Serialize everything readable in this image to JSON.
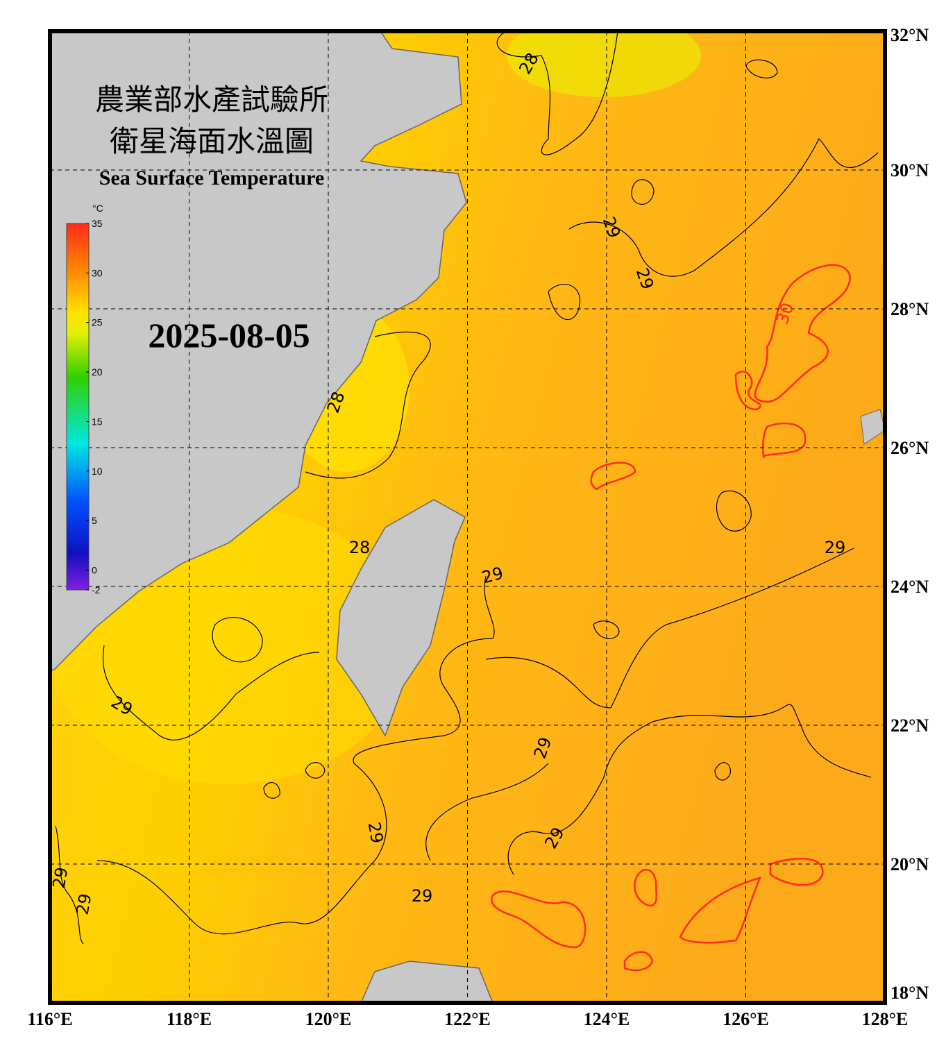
{
  "chart_data": {
    "type": "map",
    "title": "農業部水產試驗所",
    "subtitle": "衛星海面水溫圖",
    "caption": "Sea Surface Temperature",
    "date": "2025-08-05",
    "colorbar": {
      "unit": "°C",
      "lim": [
        -2,
        35
      ],
      "ticks": [
        35,
        30,
        25,
        20,
        15,
        10,
        5,
        0,
        -2
      ]
    },
    "xlim": [
      116,
      128
    ],
    "ylim": [
      18,
      32
    ],
    "xticks": [
      {
        "value": 116,
        "label": "116°E"
      },
      {
        "value": 118,
        "label": "118°E"
      },
      {
        "value": 120,
        "label": "120°E"
      },
      {
        "value": 122,
        "label": "122°E"
      },
      {
        "value": 124,
        "label": "124°E"
      },
      {
        "value": 126,
        "label": "126°E"
      },
      {
        "value": 128,
        "label": "128°E"
      }
    ],
    "yticks": [
      {
        "value": 18,
        "label": "18°N"
      },
      {
        "value": 20,
        "label": "20°N"
      },
      {
        "value": 22,
        "label": "22°N"
      },
      {
        "value": 24,
        "label": "24°N"
      },
      {
        "value": 26,
        "label": "26°N"
      },
      {
        "value": 28,
        "label": "28°N"
      },
      {
        "value": 30,
        "label": "30°N"
      },
      {
        "value": 32,
        "label": "32°N"
      }
    ],
    "grid": true,
    "contour_labels": [
      28,
      29,
      29,
      30,
      28,
      28,
      29,
      29,
      29,
      29,
      29,
      29,
      29,
      29,
      29
    ]
  }
}
